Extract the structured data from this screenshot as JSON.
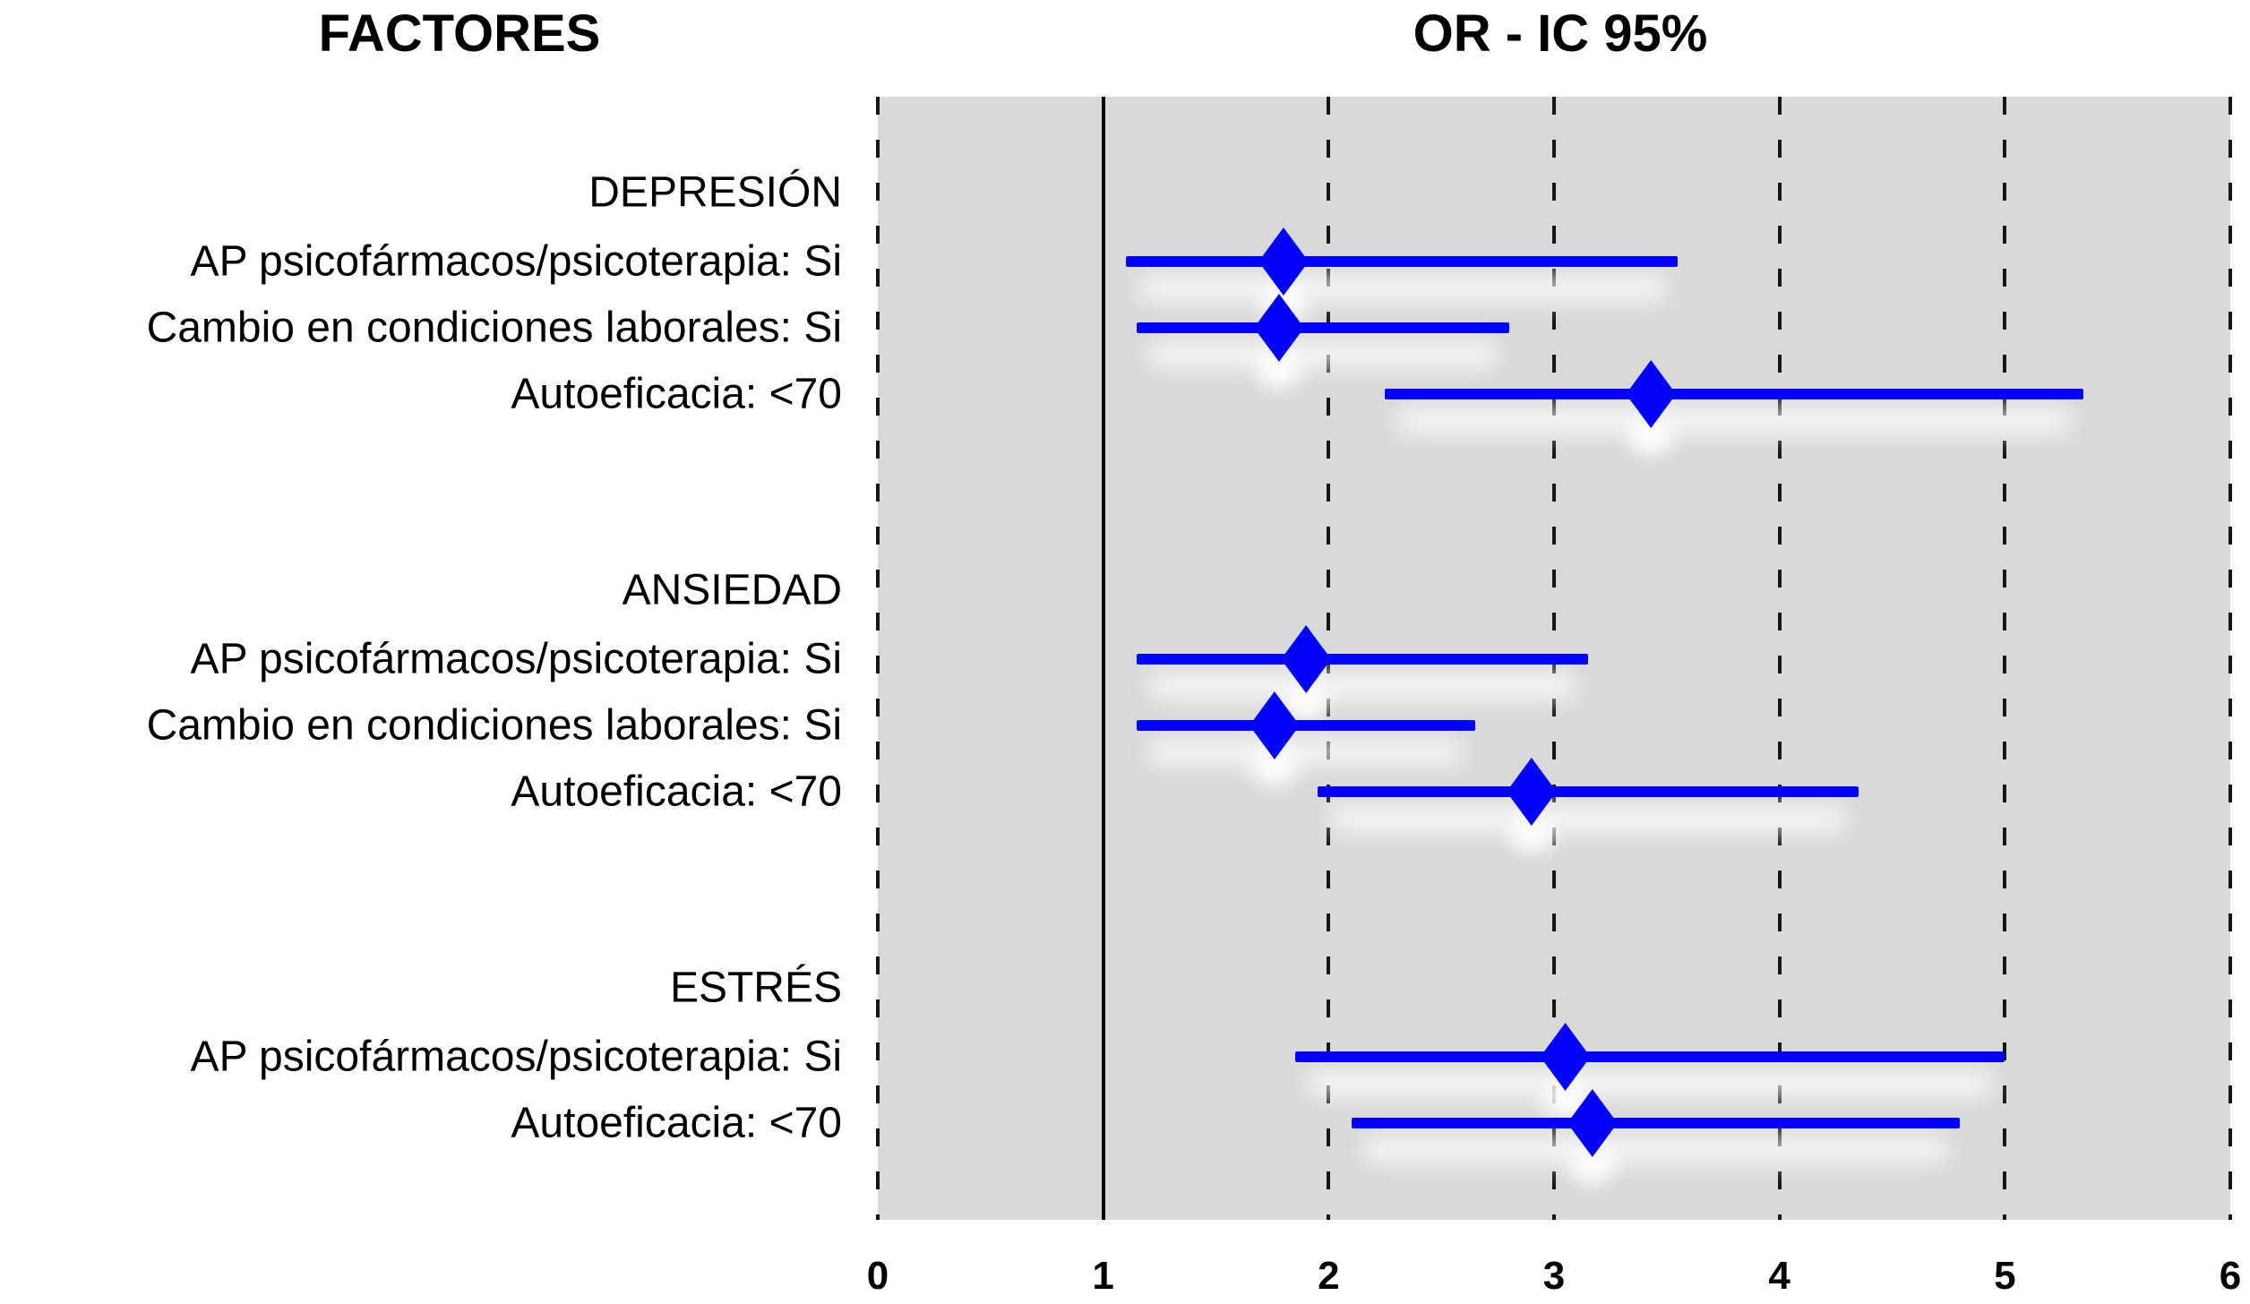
{
  "chart_data": {
    "type": "scatter",
    "variant": "forest_plot_or_ci",
    "title_left": "FACTORES",
    "title_right": "OR - IC 95%",
    "xlabel": "",
    "ylabel": "",
    "xlim": [
      0,
      6
    ],
    "x_ticks": [
      0,
      1,
      2,
      3,
      4,
      5,
      6
    ],
    "reference_line_x": 1,
    "grid": "vertical-dashed",
    "legend_position": "none",
    "marker": "diamond",
    "colors": {
      "marker": "#0202F8",
      "ci_line": "#0202F8",
      "plot_bg": "#D9D9D9",
      "grid": "#161616",
      "text": "#000000"
    },
    "groups": [
      {
        "name": "DEPRESIÓN",
        "rows": [
          {
            "label": "AP psicofármacos/psicoterapia: Si",
            "or": 1.8,
            "ci_low": 1.1,
            "ci_high": 3.55
          },
          {
            "label": "Cambio en condiciones laborales: Si",
            "or": 1.78,
            "ci_low": 1.15,
            "ci_high": 2.8
          },
          {
            "label": "Autoeficacia: <70",
            "or": 3.43,
            "ci_low": 2.25,
            "ci_high": 5.35
          }
        ]
      },
      {
        "name": "ANSIEDAD",
        "rows": [
          {
            "label": "AP psicofármacos/psicoterapia: Si",
            "or": 1.9,
            "ci_low": 1.15,
            "ci_high": 3.15
          },
          {
            "label": "Cambio en condiciones laborales: Si",
            "or": 1.76,
            "ci_low": 1.15,
            "ci_high": 2.65
          },
          {
            "label": "Autoeficacia: <70",
            "or": 2.9,
            "ci_low": 1.95,
            "ci_high": 4.35
          }
        ]
      },
      {
        "name": "ESTRÉS",
        "rows": [
          {
            "label": "AP psicofármacos/psicoterapia: Si",
            "or": 3.05,
            "ci_low": 1.85,
            "ci_high": 5.0
          },
          {
            "label": "Autoeficacia: <70",
            "or": 3.17,
            "ci_low": 2.1,
            "ci_high": 4.8
          }
        ]
      }
    ]
  }
}
